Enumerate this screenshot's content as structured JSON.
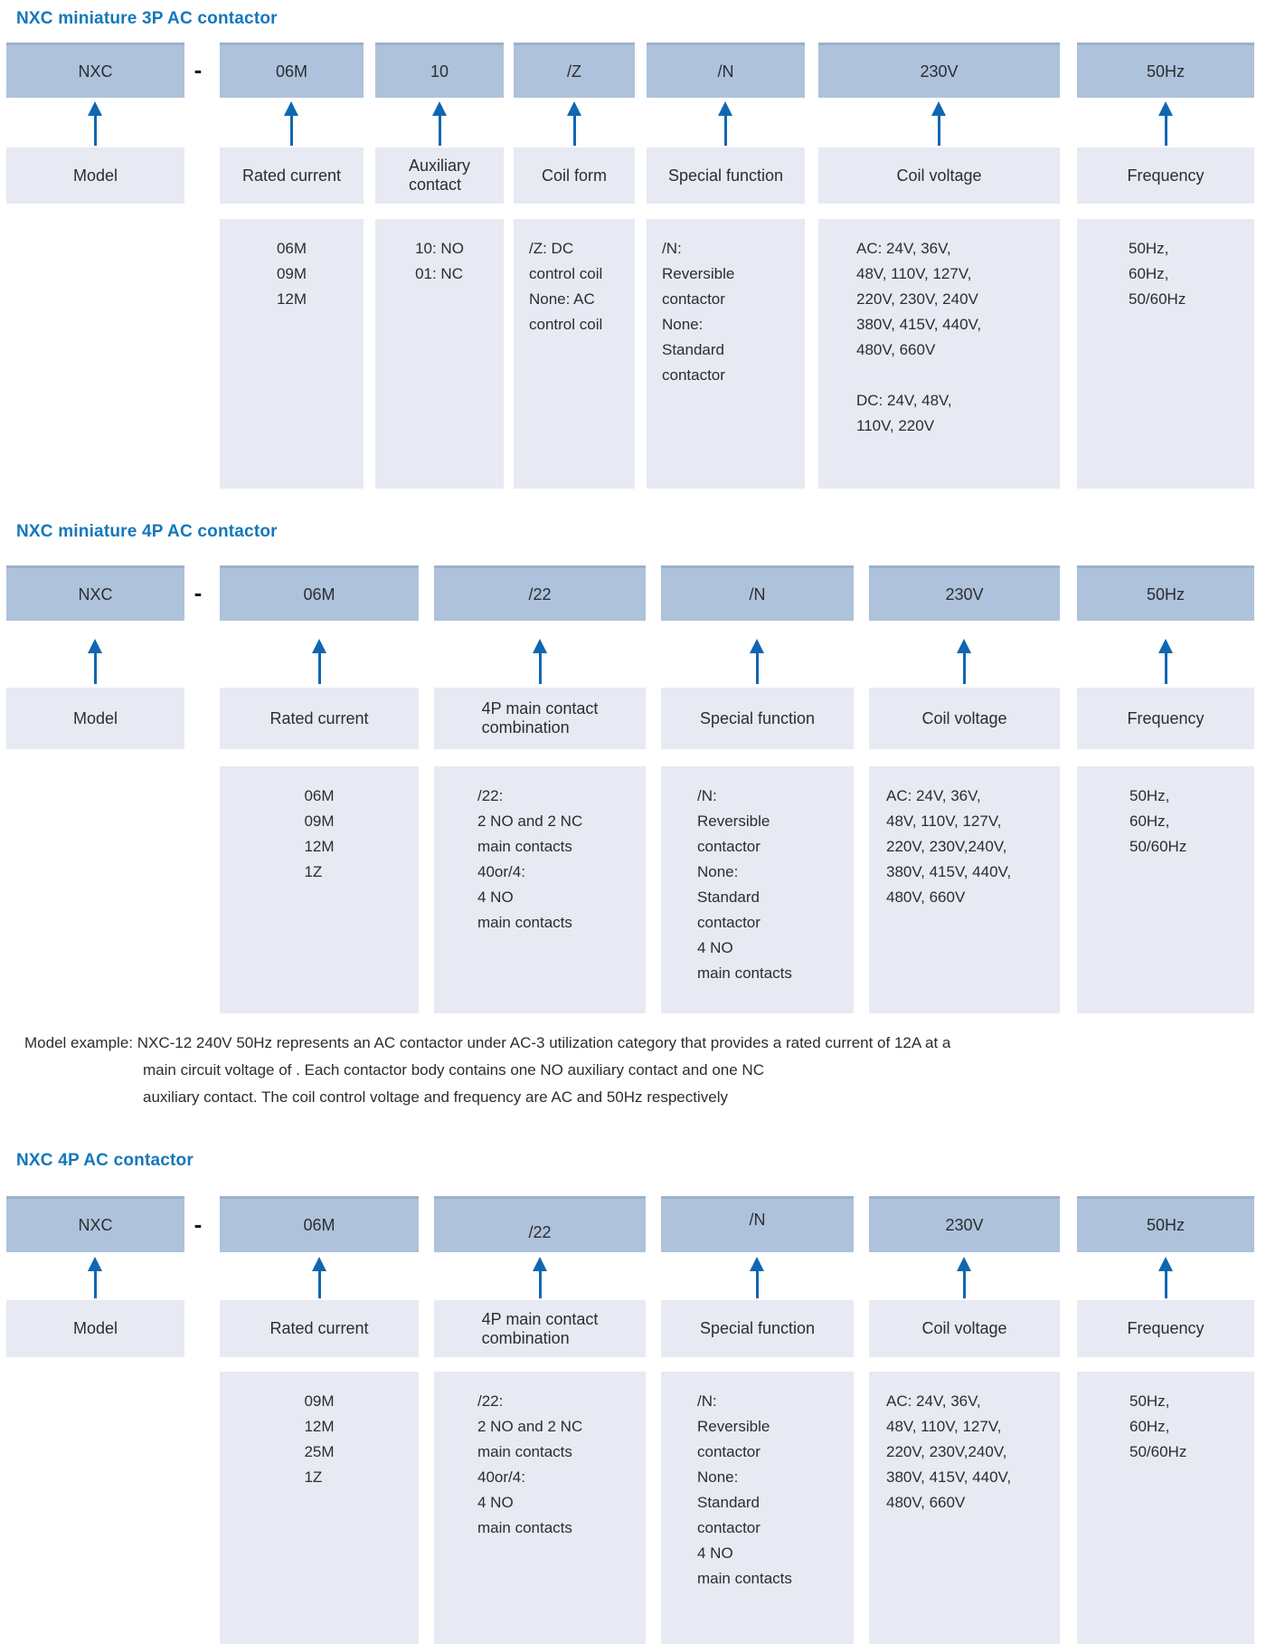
{
  "colors": {
    "code_box": "#aec2db",
    "panel": "#e7e9f3",
    "title": "#1477bb",
    "arrow": "#0f67b1",
    "text": "#2b2d33"
  },
  "sections": [
    {
      "title": "NXC miniature 3P AC contactor",
      "separator": "-",
      "columns": [
        {
          "code": "NXC",
          "label": "Model"
        },
        {
          "code": "06M",
          "label": "Rated current",
          "desc": "06M\n09M\n12M"
        },
        {
          "code": "10",
          "label": "Auxiliary\ncontact",
          "desc": "10: NO\n01: NC"
        },
        {
          "code": "/Z",
          "label": "Coil form",
          "desc": "/Z: DC\ncontrol coil\nNone: AC\ncontrol coil"
        },
        {
          "code": "/N",
          "label": "Special function",
          "desc": "/N:\nReversible\ncontactor\nNone:\nStandard\ncontactor"
        },
        {
          "code": "230V",
          "label": "Coil voltage",
          "desc": "AC: 24V, 36V,\n48V, 110V, 127V,\n220V, 230V, 240V\n380V, 415V, 440V,\n480V, 660V\n\nDC: 24V,  48V,\n110V,  220V"
        },
        {
          "code": "50Hz",
          "label": "Frequency",
          "desc": "50Hz,\n60Hz,\n50/60Hz"
        }
      ]
    },
    {
      "title": "NXC miniature 4P AC contactor",
      "separator": "-",
      "columns": [
        {
          "code": "NXC",
          "label": "Model"
        },
        {
          "code": "06M",
          "label": "Rated current",
          "desc": "06M\n09M\n12M\n1Z"
        },
        {
          "code": "/22",
          "label": "4P main contact\ncombination",
          "desc": "/22:\n2 NO and 2 NC\nmain contacts\n40or/4:\n4 NO\nmain contacts"
        },
        {
          "code": "/N",
          "label": "Special function",
          "desc": "/N:\nReversible\ncontactor\nNone:\nStandard\ncontactor\n4 NO\nmain contacts"
        },
        {
          "code": "230V",
          "label": "Coil voltage",
          "desc": "AC: 24V, 36V,\n48V, 110V, 127V,\n220V, 230V,240V,\n380V, 415V, 440V,\n480V, 660V"
        },
        {
          "code": "50Hz",
          "label": "Frequency",
          "desc": "50Hz,\n60Hz,\n50/60Hz"
        }
      ]
    },
    {
      "title": "NXC 4P AC contactor",
      "separator": "-",
      "columns": [
        {
          "code": "NXC",
          "label": "Model"
        },
        {
          "code": "06M",
          "label": "Rated current",
          "desc": "09M\n12M\n25M\n1Z"
        },
        {
          "code": "/22",
          "label": "4P main contact\ncombination",
          "desc": "/22:\n2 NO and 2 NC\nmain contacts\n40or/4:\n4 NO\nmain contacts"
        },
        {
          "code": "/N",
          "label": "Special function",
          "desc": "/N:\nReversible\ncontactor\nNone:\nStandard\ncontactor\n4 NO\nmain contacts"
        },
        {
          "code": "230V",
          "label": "Coil voltage",
          "desc": "AC: 24V, 36V,\n48V, 110V, 127V,\n220V, 230V,240V,\n380V, 415V, 440V,\n480V, 660V"
        },
        {
          "code": "50Hz",
          "label": "Frequency",
          "desc": "50Hz,\n60Hz,\n50/60Hz"
        }
      ]
    }
  ],
  "note": {
    "line1": "Model example: NXC-12 240V 50Hz represents an AC contactor under AC-3 utilization category that provides a rated current of 12A at a",
    "line2": "main circuit voltage of . Each contactor body contains one NO auxiliary contact and one NC",
    "line3": "auxiliary contact. The coil control voltage and frequency are AC and 50Hz respectively"
  }
}
